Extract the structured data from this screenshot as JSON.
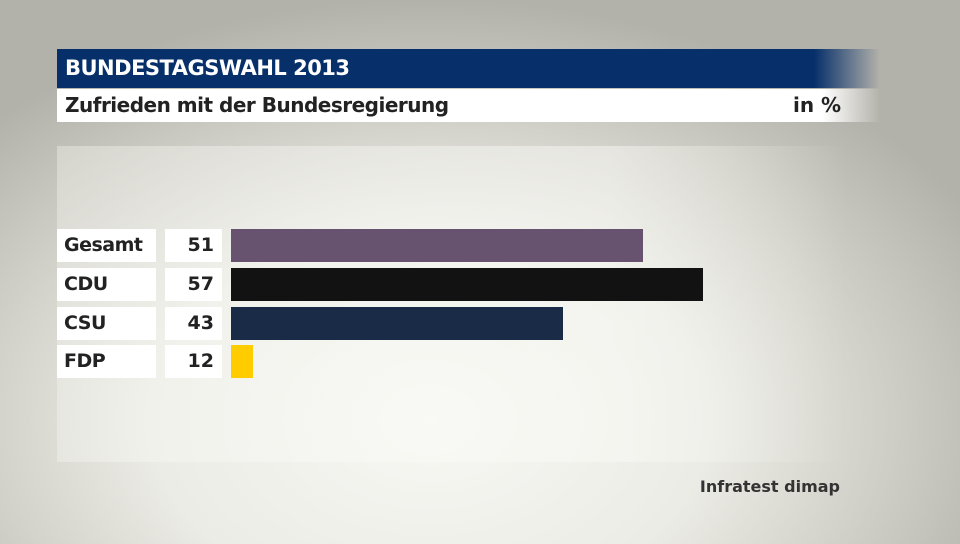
{
  "header": {
    "title": "BUNDESTAGSWAHL 2013"
  },
  "subtitle": {
    "text": "Zufrieden mit der Bundesregierung",
    "unit": "in %"
  },
  "chart_data": {
    "type": "bar",
    "orientation": "horizontal",
    "title": "Zufrieden mit der Bundesregierung",
    "unit": "in %",
    "categories": [
      "Gesamt",
      "CDU",
      "CSU",
      "FDP"
    ],
    "values": [
      51,
      57,
      43,
      12
    ],
    "colors": [
      "#67536f",
      "#121212",
      "#1a2b48",
      "#ffcc00"
    ],
    "grid": false,
    "legend": "none"
  },
  "source": "Infratest dimap"
}
